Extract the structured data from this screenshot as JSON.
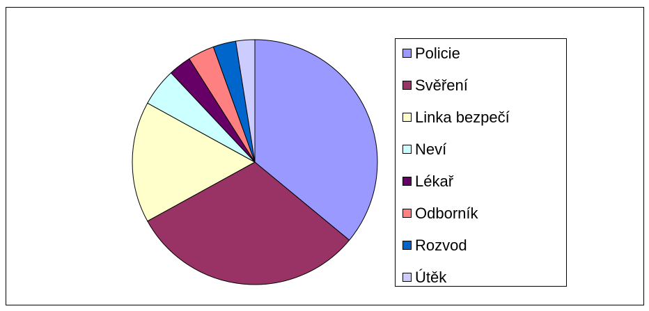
{
  "chart_data": {
    "type": "pie",
    "categories": [
      "Policie",
      "Svěření",
      "Linka bezpečí",
      "Neví",
      "Lékař",
      "Odborník",
      "Rozvod",
      "Útěk"
    ],
    "values": [
      36,
      31,
      16,
      5,
      3,
      3.5,
      3,
      2.5
    ],
    "colors": [
      "#9999ff",
      "#993366",
      "#ffffcc",
      "#ccffff",
      "#660066",
      "#ff8080",
      "#0066cc",
      "#ccccff"
    ],
    "legend": "right"
  }
}
